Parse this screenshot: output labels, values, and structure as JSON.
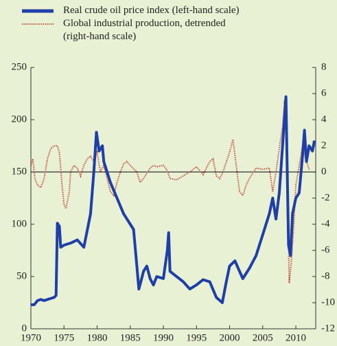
{
  "chart_data": {
    "type": "line",
    "series": [
      {
        "name": "Real crude oil price index (left-hand scale)",
        "color": "#1f3fa8",
        "axis": "y",
        "x": [
          1970,
          1970.5,
          1971,
          1971.5,
          1972,
          1972.5,
          1973,
          1973.5,
          1973.8,
          1974,
          1974.3,
          1974.5,
          1975,
          1976,
          1977,
          1978,
          1979,
          1979.5,
          1979.9,
          1980.3,
          1980.8,
          1981,
          1981.5,
          1982,
          1983,
          1984,
          1985,
          1985.5,
          1986,
          1986.3,
          1986.6,
          1987,
          1987.5,
          1988,
          1988.5,
          1989,
          1990,
          1990.6,
          1990.8,
          1991,
          1992,
          1993,
          1994,
          1995,
          1996,
          1997,
          1998,
          1998.9,
          1999.5,
          2000,
          2000.8,
          2001.5,
          2002,
          2003,
          2004,
          2005,
          2006,
          2006.5,
          2007,
          2007.5,
          2008,
          2008.5,
          2008.9,
          2009.2,
          2009.5,
          2010,
          2010.5,
          2011,
          2011.3,
          2011.6,
          2012,
          2012.5,
          2012.8
        ],
        "values": [
          23,
          23,
          27,
          28,
          27,
          28,
          29,
          30,
          32,
          101,
          98,
          78,
          80,
          82,
          85,
          78,
          110,
          150,
          188,
          170,
          175,
          160,
          150,
          140,
          125,
          110,
          100,
          95,
          60,
          38,
          45,
          55,
          60,
          48,
          42,
          50,
          48,
          75,
          92,
          55,
          50,
          45,
          38,
          42,
          47,
          45,
          30,
          25,
          45,
          60,
          65,
          55,
          48,
          58,
          70,
          90,
          110,
          125,
          105,
          130,
          175,
          222,
          80,
          70,
          110,
          125,
          130,
          165,
          190,
          160,
          175,
          170,
          180
        ]
      },
      {
        "name": "Global industrial production, detrended (right-hand scale)",
        "color": "#c0392b",
        "axis": "y2",
        "x": [
          1970,
          1970.3,
          1970.6,
          1971,
          1971.5,
          1972,
          1972.5,
          1973,
          1973.5,
          1974,
          1974.3,
          1974.7,
          1975,
          1975.3,
          1975.8,
          1976,
          1976.5,
          1977,
          1977.5,
          1978,
          1978.5,
          1979,
          1979.5,
          1980,
          1980.5,
          1981,
          1981.5,
          1982,
          1982.5,
          1983,
          1983.5,
          1984,
          1984.5,
          1985,
          1986,
          1986.5,
          1987,
          1988,
          1988.5,
          1989,
          1990,
          1990.5,
          1991,
          1992,
          1993,
          1994,
          1995,
          1996,
          1997,
          1997.5,
          1998,
          1998.5,
          1999,
          2000,
          2000.5,
          2001,
          2001.5,
          2002,
          2002.5,
          2003,
          2004,
          2005,
          2006,
          2006.5,
          2007,
          2007.5,
          2008,
          2008.3,
          2008.7,
          2009,
          2009.3,
          2009.7,
          2010,
          2010.5,
          2011,
          2011.5,
          2012
        ],
        "values": [
          0.5,
          1,
          -0.5,
          -1,
          -1.2,
          -0.5,
          1,
          1.8,
          2,
          2,
          1.5,
          -1,
          -2.5,
          -2.8,
          -1.5,
          0,
          0.5,
          0.3,
          -0.3,
          0.5,
          1,
          1.2,
          0.8,
          1.5,
          0,
          0.5,
          -0.5,
          -1.5,
          -1.8,
          -0.8,
          0,
          0.6,
          0.8,
          0.5,
          0,
          -0.8,
          -0.5,
          0.3,
          0.5,
          0.4,
          0.5,
          0.2,
          -0.5,
          -0.6,
          -0.3,
          0,
          0.4,
          -0.2,
          0.8,
          1,
          -0.3,
          -0.5,
          0,
          1.5,
          2.5,
          0.5,
          -1.5,
          -1.8,
          -1,
          -0.5,
          0.3,
          0.2,
          0.3,
          -1.5,
          0,
          1.8,
          3.5,
          5.5,
          0,
          -8.5,
          -7,
          -4,
          -1,
          0.5,
          2,
          1,
          0.2
        ]
      }
    ],
    "xlim": [
      1970,
      2013
    ],
    "xticks": [
      1970,
      1975,
      1980,
      1985,
      1990,
      1995,
      2000,
      2005,
      2010
    ],
    "ylim": [
      0,
      250
    ],
    "yticks": [
      0,
      50,
      100,
      150,
      200,
      250
    ],
    "y2lim": [
      -12,
      8
    ],
    "y2ticks": [
      -12,
      -10,
      -8,
      -6,
      -4,
      -2,
      0,
      2,
      4,
      6,
      8
    ]
  }
}
